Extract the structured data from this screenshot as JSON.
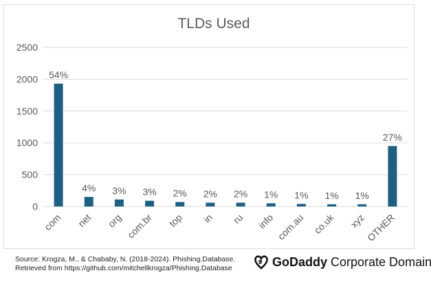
{
  "chart_data": {
    "type": "bar",
    "title": "TLDs Used",
    "categories": [
      "com",
      "net",
      "org",
      "com.br",
      "top",
      "in",
      "ru",
      "info",
      "com.au",
      "co.uk",
      "xyz",
      "OTHER"
    ],
    "values": [
      1930,
      150,
      110,
      90,
      70,
      60,
      60,
      50,
      40,
      35,
      35,
      950
    ],
    "data_labels": [
      "54%",
      "4%",
      "3%",
      "3%",
      "2%",
      "2%",
      "2%",
      "1%",
      "1%",
      "1%",
      "1%",
      "27%"
    ],
    "ylim": [
      0,
      2500
    ],
    "yticks": [
      "0",
      "500",
      "1000",
      "1500",
      "2000",
      "2500"
    ],
    "grid": true,
    "bar_color": "#1f5f82",
    "grid_color": "#d9d9d9"
  },
  "footer": {
    "source_line1": "Source: Krogza, M., & Chababy, N. (2018-2024). Phishing.Database.",
    "source_line2": "Retrieved from  https://github.com/mitchellkrogza/Phishing.Database",
    "brand_bold": "GoDaddy",
    "brand_rest": " Corporate Domains",
    "brand_icon": "godaddy-logo-icon"
  }
}
